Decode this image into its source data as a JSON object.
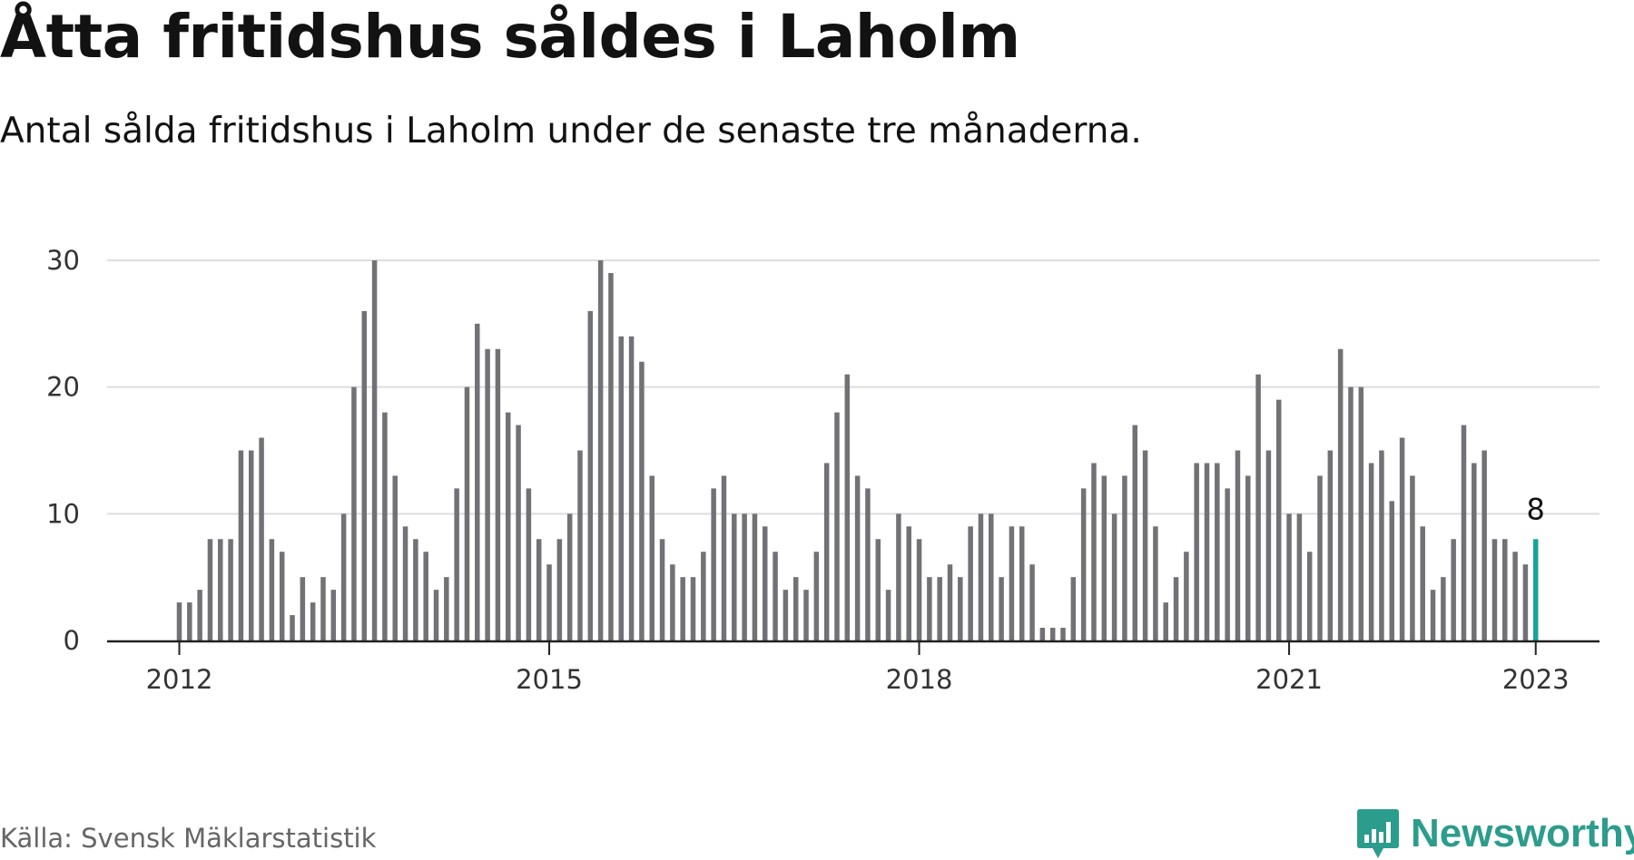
{
  "title": "Åtta fritidshus såldes i Laholm",
  "subtitle": "Antal sålda fritidshus i Laholm under de senaste tre månaderna.",
  "source": "Källa: Svensk Mäklarstatistik",
  "brand": "Newsworthy",
  "colors": {
    "bar": "#727176",
    "highlight": "#1aa398",
    "grid": "#dddddd",
    "axis": "#222222",
    "brand": "#2c9c8c"
  },
  "chart_data": {
    "type": "bar",
    "x_start": "2012-01",
    "x_ticks": [
      "2012",
      "2015",
      "2018",
      "2021",
      "2023"
    ],
    "y_ticks": [
      "0",
      "10",
      "20",
      "30"
    ],
    "ylim": [
      0,
      30
    ],
    "grid": true,
    "highlight_label": "8",
    "values": [
      3,
      3,
      4,
      8,
      8,
      8,
      15,
      15,
      16,
      8,
      7,
      2,
      5,
      3,
      5,
      4,
      10,
      20,
      26,
      30,
      18,
      13,
      9,
      8,
      7,
      4,
      5,
      12,
      20,
      25,
      23,
      23,
      18,
      17,
      12,
      8,
      6,
      8,
      10,
      15,
      26,
      30,
      29,
      24,
      24,
      22,
      13,
      8,
      6,
      5,
      5,
      7,
      12,
      13,
      10,
      10,
      10,
      9,
      7,
      4,
      5,
      4,
      7,
      14,
      18,
      21,
      13,
      12,
      8,
      4,
      10,
      9,
      8,
      5,
      5,
      6,
      5,
      9,
      10,
      10,
      5,
      9,
      9,
      6,
      1,
      1,
      1,
      5,
      12,
      14,
      13,
      10,
      13,
      17,
      15,
      9,
      3,
      5,
      7,
      14,
      14,
      14,
      12,
      15,
      13,
      21,
      15,
      19,
      10,
      10,
      7,
      13,
      15,
      23,
      20,
      20,
      14,
      15,
      11,
      16,
      13,
      9,
      4,
      5,
      8,
      17,
      14,
      15,
      8,
      8,
      7,
      6,
      8
    ]
  }
}
